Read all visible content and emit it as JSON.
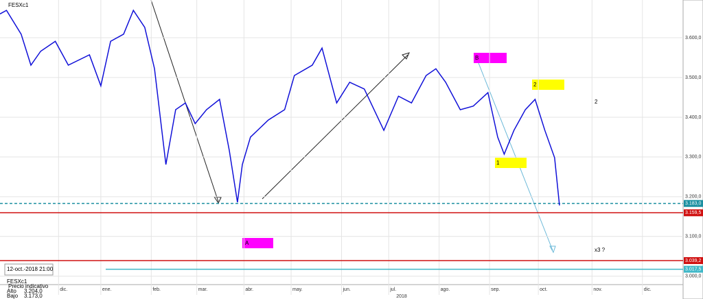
{
  "chart_data": {
    "type": "line",
    "title": "FESXc1",
    "x": [
      0,
      4,
      13,
      19,
      25,
      34,
      42,
      55,
      62,
      68,
      76,
      82,
      89,
      95,
      99,
      102,
      108,
      114,
      120,
      127,
      135,
      141,
      146,
      149,
      154,
      165,
      175,
      181,
      192,
      198,
      207,
      215,
      224,
      230,
      236,
      245,
      253,
      262,
      268,
      274,
      283,
      291,
      300,
      306,
      310,
      316,
      323,
      329,
      335,
      341,
      344
    ],
    "series": [
      {
        "name": "FESXc1",
        "color": "#1010d8",
        "values": [
          3660,
          3669,
          3609,
          3531,
          3566,
          3591,
          3531,
          3557,
          3479,
          3591,
          3609,
          3669,
          3626,
          3522,
          3384,
          3281,
          3419,
          3436,
          3384,
          3419,
          3445,
          3316,
          3186,
          3281,
          3350,
          3393,
          3419,
          3505,
          3531,
          3574,
          3436,
          3488,
          3471,
          3419,
          3367,
          3453,
          3436,
          3505,
          3522,
          3488,
          3419,
          3428,
          3462,
          3350,
          3307,
          3367,
          3419,
          3445,
          3367,
          3298,
          3178
        ]
      }
    ],
    "xlim": [
      0,
      420
    ],
    "ylim": [
      2984,
      3695
    ],
    "xticks": [
      {
        "value": 36,
        "label": "dic."
      },
      {
        "value": 62,
        "label": "ene."
      },
      {
        "value": 93,
        "label": "feb."
      },
      {
        "value": 121,
        "label": "mar."
      },
      {
        "value": 150,
        "label": "abr."
      },
      {
        "value": 179,
        "label": "may."
      },
      {
        "value": 210,
        "label": "jun."
      },
      {
        "value": 239,
        "label": "jul."
      },
      {
        "value": 270,
        "label": "ago."
      },
      {
        "value": 301,
        "label": "sep."
      },
      {
        "value": 331,
        "label": "oct."
      },
      {
        "value": 364,
        "label": "nov."
      },
      {
        "value": 395,
        "label": "dic."
      }
    ],
    "year_label": "2018",
    "yticks": [
      {
        "value": 3000,
        "label": "3.000,0"
      },
      {
        "value": 3100,
        "label": "3.100,0"
      },
      {
        "value": 3200,
        "label": "3.200,0"
      },
      {
        "value": 3300,
        "label": "3.300,0"
      },
      {
        "value": 3400,
        "label": "3.400,0"
      },
      {
        "value": 3500,
        "label": "3.500,0"
      },
      {
        "value": 3600,
        "label": "3.600,0"
      }
    ],
    "grid": true,
    "levels": [
      {
        "value": 3183,
        "label": "3.183,0",
        "color": "#1a8fa0",
        "dashed": true
      },
      {
        "value": 3159.5,
        "label": "3.159,5",
        "color": "#d01010",
        "dashed": false
      },
      {
        "value": 3039.2,
        "label": "3.039,2",
        "color": "#d01010",
        "dashed": false
      },
      {
        "value": 3017.5,
        "label": "3.017,5",
        "color": "#40b8c8",
        "dashed": false,
        "start": 65
      }
    ],
    "annotations": [
      "A",
      "B",
      "1",
      "2",
      "2",
      "x3 ?"
    ],
    "info": {
      "date": "12-oct.-2018 21:00",
      "symbol": "FESXc1",
      "note": "Precio indicativo",
      "high_label": "Alto",
      "high": "3.204,0",
      "low_label": "Bajo",
      "low": "3.173,0"
    }
  }
}
